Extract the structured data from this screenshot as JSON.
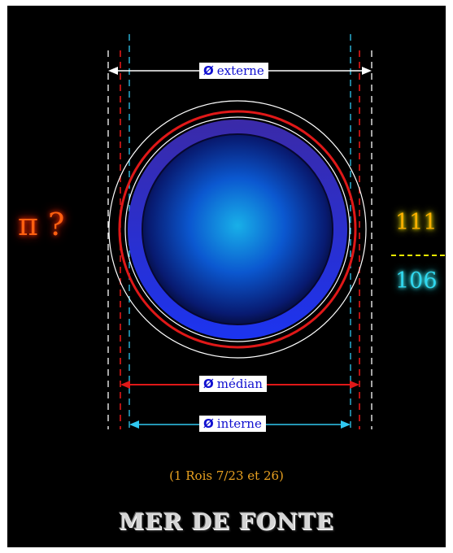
{
  "labels": {
    "diameter_symbol": "Ø",
    "externe": "externe",
    "median": "médian",
    "interne": "interne"
  },
  "pi_question": "π ?",
  "fraction": {
    "numerator": "111",
    "denominator": "106"
  },
  "reference": "(1 Rois 7/23 et 26)",
  "title": "MER DE FONTE",
  "colors": {
    "background": "#000000",
    "externe_line": "#ffffff",
    "median_line": "#e01818",
    "interne_line": "#30c8f0",
    "basin_rim": "#1f2fe0",
    "basin_glow": "#1a8fe0",
    "pi_text": "#ff6010",
    "numerator": "#ffb000",
    "denominator": "#30d8f0"
  }
}
